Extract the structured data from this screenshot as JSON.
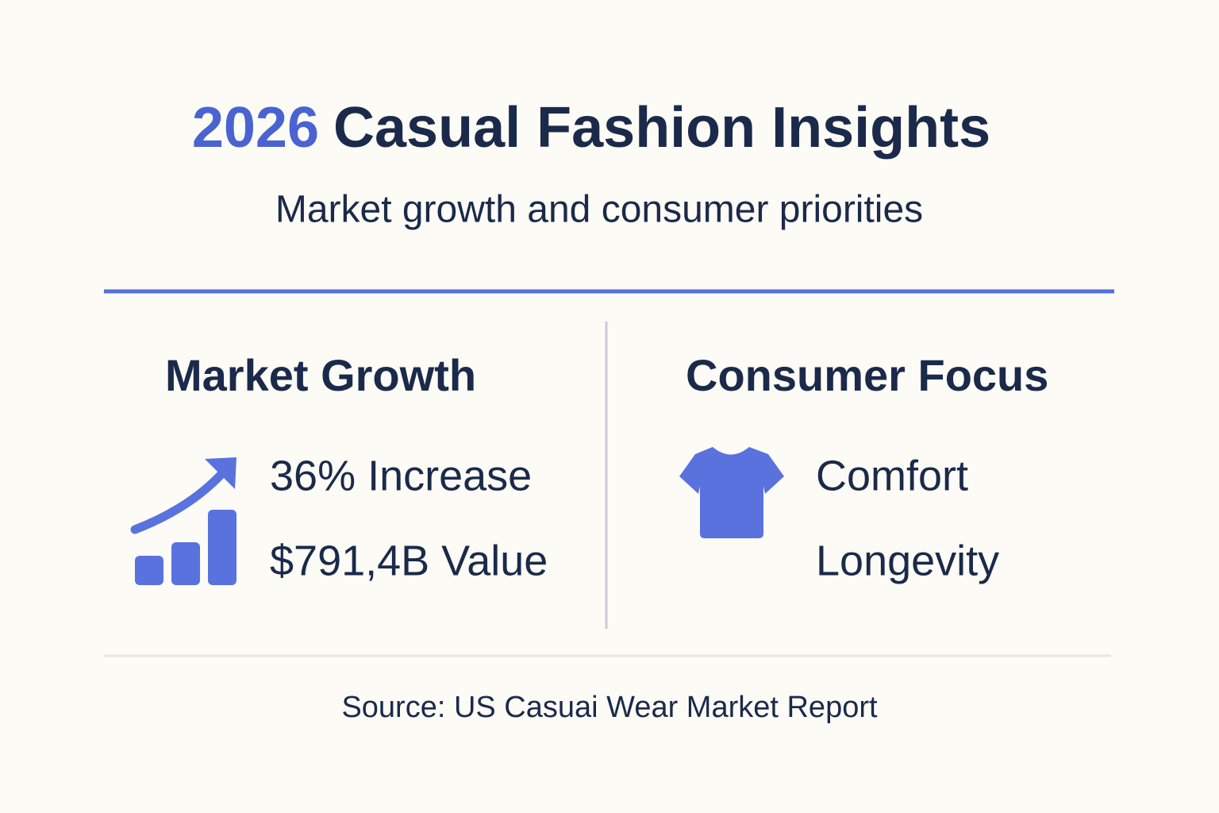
{
  "header": {
    "title_year": "2026",
    "title": "Casual Fashion Insights",
    "subtitle": "Market growth and consumer priorities"
  },
  "sections": [
    {
      "heading": "Market Growth",
      "items": [
        "36% Increase",
        "$791,4B Value"
      ]
    },
    {
      "heading": "Consumer Focus",
      "items": [
        "Comfort",
        "Longevity"
      ]
    }
  ],
  "footer": {
    "source": "Source: US Casuai Wear Market Report"
  }
}
